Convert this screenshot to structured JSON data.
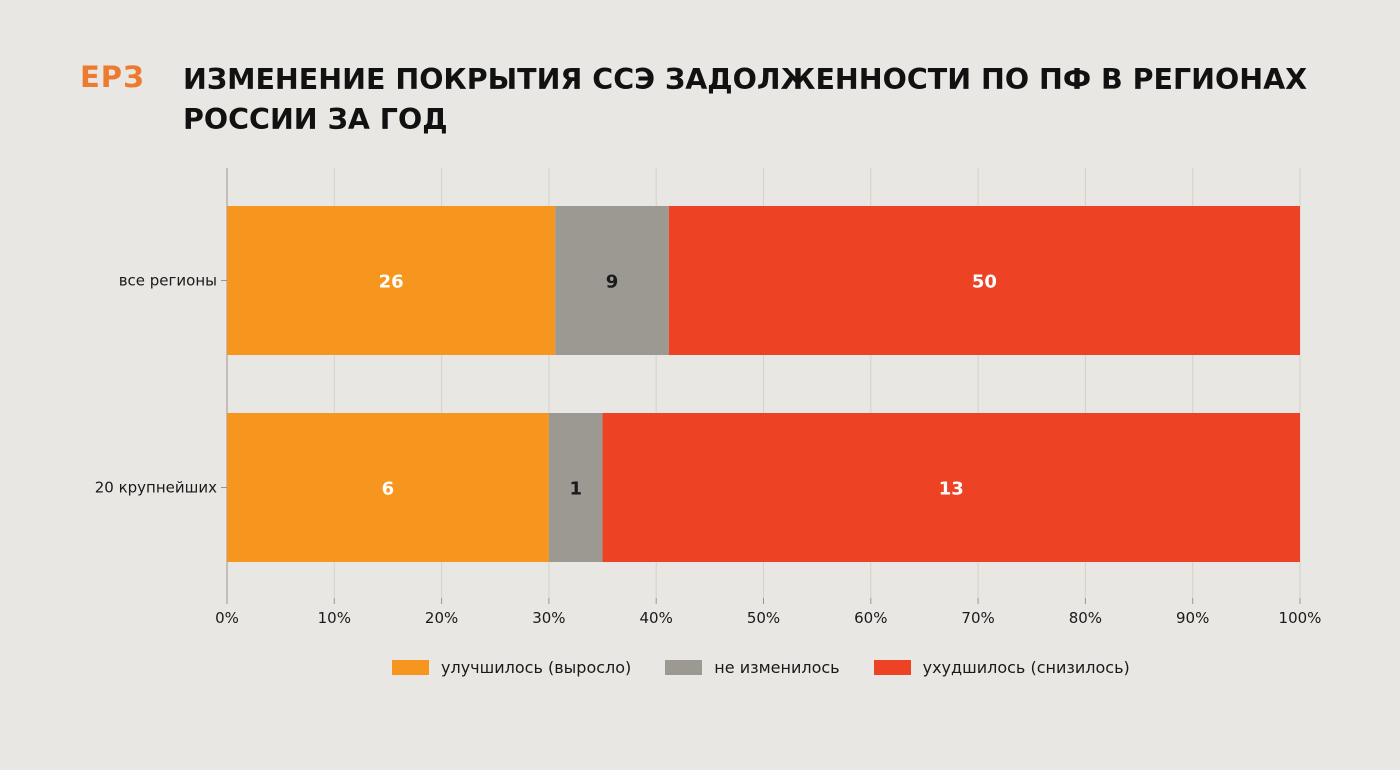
{
  "header": {
    "logo": "ЕРЗ",
    "title_line1": "ИЗМЕНЕНИЕ ПОКРЫТИЯ ССЭ ЗАДОЛЖЕННОСТИ ПО ПФ В РЕГИОНАХ",
    "title_line2": "РОССИИ ЗА ГОД"
  },
  "colors": {
    "background": "#E9E7E3",
    "brand": "#EE7A2F",
    "improved": "#F7961E",
    "unchanged": "#9C9892",
    "worsened": "#EE4225"
  },
  "chart_data": {
    "type": "bar",
    "orientation": "horizontal",
    "stacking": "percent",
    "categories": [
      "все регионы",
      "20 крупнейших"
    ],
    "series": [
      {
        "name": "улучшилось (выросло)",
        "values": [
          26,
          6
        ],
        "color": "#F7961E"
      },
      {
        "name": "не изменилось",
        "values": [
          9,
          1
        ],
        "color": "#9C9892"
      },
      {
        "name": "ухудшилось (снизилось)",
        "values": [
          50,
          13
        ],
        "color": "#EE4225"
      }
    ],
    "xlim": [
      0,
      100
    ],
    "x_ticks": [
      "0%",
      "10%",
      "20%",
      "30%",
      "40%",
      "50%",
      "60%",
      "70%",
      "80%",
      "90%",
      "100%"
    ],
    "grid": "vertical",
    "legend_position": "bottom"
  }
}
